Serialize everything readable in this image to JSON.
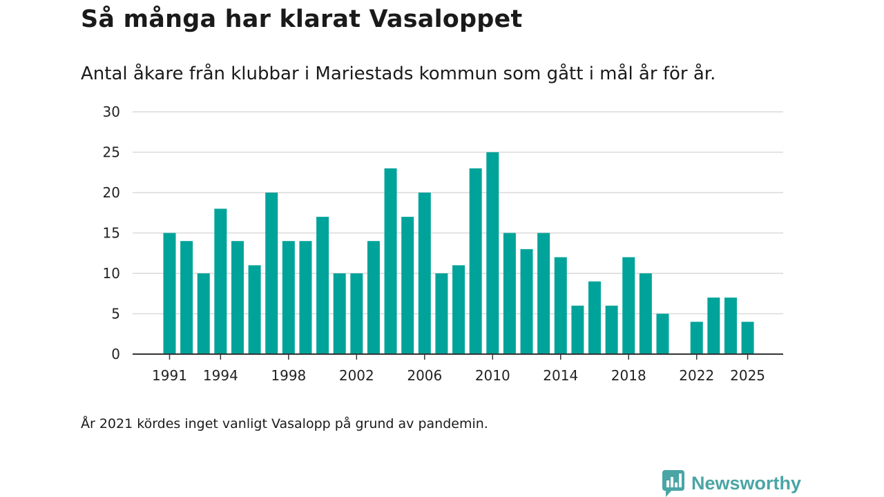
{
  "chart_data": {
    "type": "bar",
    "title": "Så många har klarat Vasaloppet",
    "subtitle": "Antal åkare från klubbar i Mariestads kommun som gått i mål år för år.",
    "x": [
      1991,
      1992,
      1993,
      1994,
      1995,
      1996,
      1997,
      1998,
      1999,
      2000,
      2001,
      2002,
      2003,
      2004,
      2005,
      2006,
      2007,
      2008,
      2009,
      2010,
      2011,
      2012,
      2013,
      2014,
      2015,
      2016,
      2017,
      2018,
      2019,
      2020,
      2021,
      2022,
      2023,
      2024,
      2025
    ],
    "values": [
      15,
      14,
      10,
      18,
      14,
      11,
      20,
      14,
      14,
      17,
      10,
      10,
      14,
      23,
      17,
      20,
      10,
      11,
      23,
      25,
      15,
      13,
      15,
      12,
      6,
      9,
      6,
      12,
      10,
      5,
      null,
      4,
      7,
      7,
      4
    ],
    "x_tick_labels": [
      "1991",
      "1994",
      "1998",
      "2002",
      "2006",
      "2010",
      "2014",
      "2018",
      "2022",
      "2025"
    ],
    "y_tick_labels": [
      "0",
      "5",
      "10",
      "15",
      "20",
      "25",
      "30"
    ],
    "ylim": [
      0,
      30
    ],
    "xlabel": "",
    "ylabel": "",
    "grid": true,
    "bar_color": "#00a39a",
    "note": "År 2021 kördes inget vanligt Vasalopp på grund av pandemin."
  },
  "brand": {
    "name": "Newsworthy",
    "icon": "newsworthy-logo-icon",
    "color": "#4aa5a5"
  }
}
